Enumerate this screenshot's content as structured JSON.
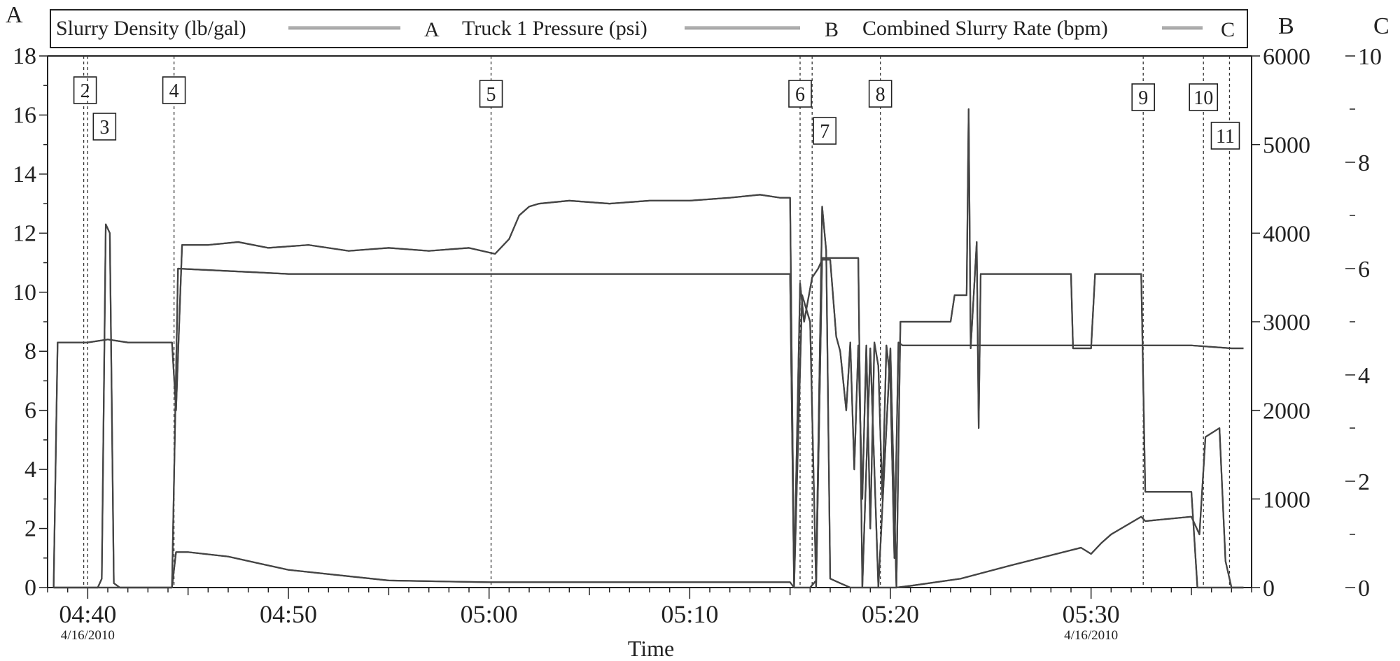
{
  "chart_data": {
    "type": "line",
    "title": "",
    "xlabel": "Time",
    "x_axis": {
      "range": [
        "04:38",
        "05:38"
      ],
      "ticks": [
        {
          "time": "04:40",
          "label": "04:40",
          "date": "4/16/2010"
        },
        {
          "time": "04:50",
          "label": "04:50",
          "date": ""
        },
        {
          "time": "05:00",
          "label": "05:00",
          "date": ""
        },
        {
          "time": "05:10",
          "label": "05:10",
          "date": ""
        },
        {
          "time": "05:20",
          "label": "05:20",
          "date": ""
        },
        {
          "time": "05:30",
          "label": "05:30",
          "date": "4/16/2010"
        }
      ]
    },
    "axes": {
      "A": {
        "letter": "A",
        "range": [
          0,
          18
        ],
        "ticks": [
          "0",
          "2",
          "4",
          "6",
          "8",
          "10",
          "12",
          "14",
          "16",
          "18"
        ]
      },
      "B": {
        "letter": "B",
        "range": [
          0,
          6000
        ],
        "ticks": [
          "0",
          "1000",
          "2000",
          "3000",
          "4000",
          "5000",
          "6000"
        ]
      },
      "C": {
        "letter": "C",
        "range": [
          0,
          10
        ],
        "ticks": [
          "0",
          "2",
          "4",
          "6",
          "8",
          "10"
        ]
      }
    },
    "legend": {
      "placement": "top",
      "entries": [
        {
          "name": "Slurry Density (lb/gal)",
          "axis": "A"
        },
        {
          "name": "Truck 1 Pressure (psi)",
          "axis": "B"
        },
        {
          "name": "Combined Slurry Rate (bpm)",
          "axis": "C"
        }
      ]
    },
    "events": [
      {
        "label": "2",
        "time": "04:39.8"
      },
      {
        "label": "3",
        "time": "04:40.0"
      },
      {
        "label": "4",
        "time": "04:44.3"
      },
      {
        "label": "5",
        "time": "05:00.1"
      },
      {
        "label": "6",
        "time": "05:15.5"
      },
      {
        "label": "7",
        "time": "05:16.1"
      },
      {
        "label": "8",
        "time": "05:19.5"
      },
      {
        "label": "9",
        "time": "05:32.6"
      },
      {
        "label": "10",
        "time": "05:35.6"
      },
      {
        "label": "11",
        "time": "05:36.9"
      }
    ],
    "series": [
      {
        "name": "Slurry Density (lb/gal)",
        "axis": "A",
        "points": [
          [
            "04:38.3",
            0
          ],
          [
            "04:38.5",
            8.3
          ],
          [
            "04:40.0",
            8.3
          ],
          [
            "04:41.0",
            8.4
          ],
          [
            "04:42.0",
            8.3
          ],
          [
            "04:43.5",
            8.3
          ],
          [
            "04:44.2",
            8.3
          ],
          [
            "04:44.4",
            6.0
          ],
          [
            "04:44.7",
            11.6
          ],
          [
            "04:46.0",
            11.6
          ],
          [
            "04:47.5",
            11.7
          ],
          [
            "04:49.0",
            11.5
          ],
          [
            "04:51.0",
            11.6
          ],
          [
            "04:53.0",
            11.4
          ],
          [
            "04:55.0",
            11.5
          ],
          [
            "04:57.0",
            11.4
          ],
          [
            "04:59.0",
            11.5
          ],
          [
            "05:00.3",
            11.3
          ],
          [
            "05:01.0",
            11.8
          ],
          [
            "05:01.5",
            12.6
          ],
          [
            "05:02.0",
            12.9
          ],
          [
            "05:02.5",
            13.0
          ],
          [
            "05:04.0",
            13.1
          ],
          [
            "05:06.0",
            13.0
          ],
          [
            "05:08.0",
            13.1
          ],
          [
            "05:10.0",
            13.1
          ],
          [
            "05:12.0",
            13.2
          ],
          [
            "05:13.5",
            13.3
          ],
          [
            "05:14.5",
            13.2
          ],
          [
            "05:15.0",
            13.2
          ],
          [
            "05:15.2",
            0.2
          ],
          [
            "05:15.5",
            10.3
          ],
          [
            "05:15.7",
            9.0
          ],
          [
            "05:16.1",
            10.5
          ],
          [
            "05:16.4",
            10.8
          ],
          [
            "05:16.6",
            11.1
          ],
          [
            "05:17.0",
            11.1
          ],
          [
            "05:17.3",
            8.5
          ],
          [
            "05:17.5",
            8.0
          ],
          [
            "05:17.8",
            6.0
          ],
          [
            "05:18.0",
            8.3
          ],
          [
            "05:18.2",
            4.0
          ],
          [
            "05:18.4",
            8.2
          ],
          [
            "05:18.6",
            3.0
          ],
          [
            "05:18.8",
            8.2
          ],
          [
            "05:19.0",
            2.0
          ],
          [
            "05:19.2",
            8.3
          ],
          [
            "05:19.4",
            7.5
          ],
          [
            "05:19.6",
            3.0
          ],
          [
            "05:19.8",
            8.2
          ],
          [
            "05:20.0",
            7.0
          ],
          [
            "05:20.2",
            1.0
          ],
          [
            "05:20.4",
            8.3
          ],
          [
            "05:20.6",
            8.2
          ],
          [
            "05:21.0",
            8.2
          ],
          [
            "05:23.0",
            8.2
          ],
          [
            "05:25.0",
            8.2
          ],
          [
            "05:27.0",
            8.2
          ],
          [
            "05:29.0",
            8.2
          ],
          [
            "05:31.0",
            8.2
          ],
          [
            "05:33.0",
            8.2
          ],
          [
            "05:35.0",
            8.2
          ],
          [
            "05:37.0",
            8.1
          ],
          [
            "05:37.6",
            8.1
          ]
        ]
      },
      {
        "name": "Truck 1 Pressure (psi)",
        "axis": "B",
        "points": [
          [
            "04:38.3",
            0
          ],
          [
            "04:40.5",
            0
          ],
          [
            "04:40.7",
            100
          ],
          [
            "04:40.9",
            4100
          ],
          [
            "04:41.1",
            4000
          ],
          [
            "04:41.3",
            50
          ],
          [
            "04:41.6",
            0
          ],
          [
            "04:44.2",
            0
          ],
          [
            "04:44.4",
            400
          ],
          [
            "04:45.0",
            400
          ],
          [
            "04:47.0",
            350
          ],
          [
            "04:50.0",
            200
          ],
          [
            "04:55.0",
            80
          ],
          [
            "05:00.0",
            60
          ],
          [
            "05:05.0",
            60
          ],
          [
            "05:10.0",
            60
          ],
          [
            "05:15.0",
            60
          ],
          [
            "05:15.2",
            0
          ],
          [
            "05:16.0",
            0
          ],
          [
            "05:16.3",
            80
          ],
          [
            "05:16.6",
            4300
          ],
          [
            "05:16.8",
            3800
          ],
          [
            "05:17.0",
            100
          ],
          [
            "05:17.5",
            50
          ],
          [
            "05:18.0",
            0
          ],
          [
            "05:20.3",
            0
          ],
          [
            "05:21.0",
            20
          ],
          [
            "05:23.5",
            100
          ],
          [
            "05:26.0",
            250
          ],
          [
            "05:29.5",
            450
          ],
          [
            "05:30.0",
            380
          ],
          [
            "05:30.5",
            500
          ],
          [
            "05:31.0",
            600
          ],
          [
            "05:32.5",
            800
          ],
          [
            "05:32.7",
            750
          ],
          [
            "05:35.0",
            800
          ],
          [
            "05:35.4",
            600
          ],
          [
            "05:35.7",
            1700
          ],
          [
            "05:36.4",
            1800
          ],
          [
            "05:36.7",
            300
          ],
          [
            "05:37.0",
            0
          ],
          [
            "05:37.6",
            0
          ]
        ]
      },
      {
        "name": "Combined Slurry Rate (bpm)",
        "axis": "C",
        "points": [
          [
            "04:38.3",
            0
          ],
          [
            "04:44.2",
            0
          ],
          [
            "04:44.5",
            6.0
          ],
          [
            "04:50.0",
            5.9
          ],
          [
            "05:00.0",
            5.9
          ],
          [
            "05:10.0",
            5.9
          ],
          [
            "05:15.0",
            5.9
          ],
          [
            "05:15.2",
            0
          ],
          [
            "05:15.6",
            5.5
          ],
          [
            "05:16.0",
            5.0
          ],
          [
            "05:16.3",
            0
          ],
          [
            "05:16.6",
            6.2
          ],
          [
            "05:17.0",
            6.2
          ],
          [
            "05:18.0",
            6.2
          ],
          [
            "05:18.4",
            6.2
          ],
          [
            "05:18.6",
            0
          ],
          [
            "05:19.0",
            4.5
          ],
          [
            "05:19.4",
            0
          ],
          [
            "05:20.0",
            4.5
          ],
          [
            "05:20.3",
            0
          ],
          [
            "05:20.5",
            5.0
          ],
          [
            "05:23.0",
            5.0
          ],
          [
            "05:23.2",
            5.5
          ],
          [
            "05:23.8",
            5.5
          ],
          [
            "05:23.9",
            9.0
          ],
          [
            "05:24.0",
            4.5
          ],
          [
            "05:24.3",
            6.5
          ],
          [
            "05:24.4",
            3.0
          ],
          [
            "05:24.5",
            5.9
          ],
          [
            "05:29.0",
            5.9
          ],
          [
            "05:29.1",
            4.5
          ],
          [
            "05:30.0",
            4.5
          ],
          [
            "05:30.2",
            5.9
          ],
          [
            "05:32.5",
            5.9
          ],
          [
            "05:32.7",
            1.8
          ],
          [
            "05:35.0",
            1.8
          ],
          [
            "05:35.3",
            0
          ],
          [
            "05:37.6",
            0
          ]
        ]
      }
    ]
  }
}
